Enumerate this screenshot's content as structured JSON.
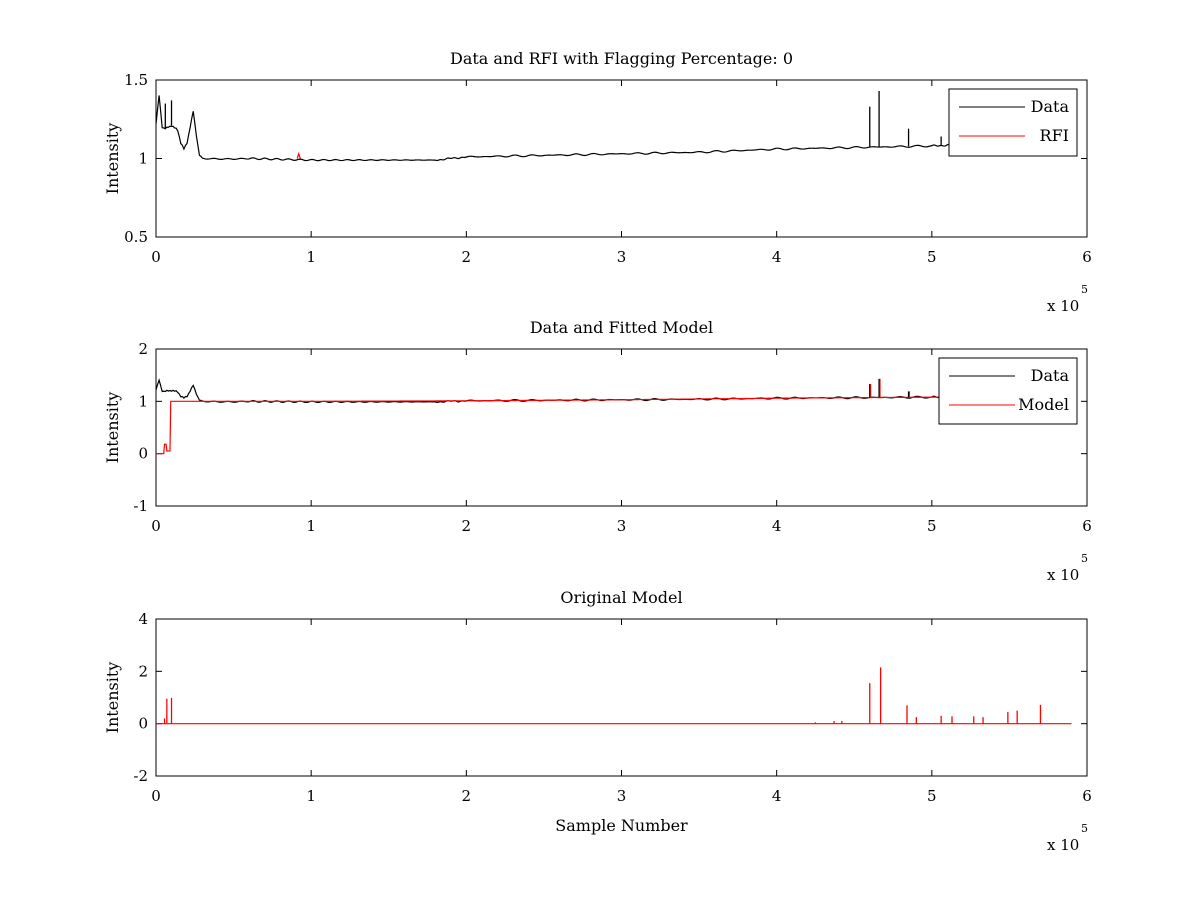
{
  "chart_data": [
    {
      "type": "line",
      "title": "Data and RFI with Flagging Percentage: 0",
      "xlabel": "",
      "ylabel": "Intensity",
      "xlim": [
        0,
        600000
      ],
      "ylim": [
        0.5,
        1.5
      ],
      "xticks": [
        0,
        1,
        2,
        3,
        4,
        5,
        6
      ],
      "yticks": [
        0.5,
        1,
        1.5
      ],
      "xtick_labels": [
        "0",
        "1",
        "2",
        "3",
        "4",
        "5",
        "6"
      ],
      "ytick_labels": [
        "0.5",
        "1",
        "1.5"
      ],
      "x_exponent_label": "x 10",
      "x_exponent_power": "5",
      "grid": false,
      "legend_position": "top-right",
      "series": [
        {
          "name": "Data",
          "color": "#000000",
          "x": [
            0,
            2000,
            4000,
            6000,
            10000,
            14000,
            16000,
            18000,
            20000,
            22000,
            24000,
            26000,
            28000,
            30000,
            60000,
            100000,
            140000,
            180000,
            200000,
            250000,
            300000,
            350000,
            400000,
            450000,
            500000,
            520000
          ],
          "y": [
            1.22,
            1.4,
            1.2,
            1.19,
            1.21,
            1.18,
            1.1,
            1.06,
            1.1,
            1.2,
            1.3,
            1.15,
            1.02,
            1.0,
            1.0,
            0.99,
            0.99,
            0.99,
            1.01,
            1.02,
            1.03,
            1.04,
            1.06,
            1.07,
            1.08,
            1.09
          ]
        },
        {
          "name": "RFI",
          "color": "#ff0000",
          "x": [
            91000,
            92000,
            93000
          ],
          "y": [
            1.0,
            1.03,
            1.0
          ]
        }
      ],
      "spikes": [
        {
          "x": 6000,
          "y": 1.35
        },
        {
          "x": 10000,
          "y": 1.37
        },
        {
          "x": 460000,
          "y": 1.33
        },
        {
          "x": 466000,
          "y": 1.43
        },
        {
          "x": 485000,
          "y": 1.19
        },
        {
          "x": 506000,
          "y": 1.14
        }
      ]
    },
    {
      "type": "line",
      "title": "Data and Fitted Model",
      "xlabel": "",
      "ylabel": "Intensity",
      "xlim": [
        0,
        600000
      ],
      "ylim": [
        -1,
        2
      ],
      "xticks": [
        0,
        1,
        2,
        3,
        4,
        5,
        6
      ],
      "yticks": [
        -1,
        0,
        1,
        2
      ],
      "xtick_labels": [
        "0",
        "1",
        "2",
        "3",
        "4",
        "5",
        "6"
      ],
      "ytick_labels": [
        "-1",
        "0",
        "1",
        "2"
      ],
      "x_exponent_label": "x 10",
      "x_exponent_power": "5",
      "grid": false,
      "legend_position": "top-right",
      "series": [
        {
          "name": "Data",
          "color": "#000000",
          "x": [
            0,
            2000,
            4000,
            6000,
            10000,
            14000,
            16000,
            18000,
            20000,
            22000,
            24000,
            26000,
            28000,
            30000,
            60000,
            100000,
            140000,
            180000,
            200000,
            250000,
            300000,
            350000,
            400000,
            450000,
            500000,
            520000
          ],
          "y": [
            1.22,
            1.4,
            1.2,
            1.19,
            1.21,
            1.18,
            1.1,
            1.06,
            1.1,
            1.2,
            1.3,
            1.15,
            1.02,
            1.0,
            1.0,
            0.99,
            0.99,
            0.99,
            1.01,
            1.02,
            1.03,
            1.04,
            1.06,
            1.07,
            1.08,
            1.09
          ]
        },
        {
          "name": "Model",
          "color": "#ff0000",
          "x": [
            0,
            5000,
            5500,
            6500,
            7000,
            9000,
            9500,
            10500,
            11000,
            100000,
            200000,
            300000,
            400000,
            500000,
            520000
          ],
          "y": [
            0.0,
            0.0,
            0.18,
            0.18,
            0.05,
            0.05,
            1.0,
            1.0,
            1.0,
            1.0,
            1.01,
            1.03,
            1.06,
            1.08,
            1.09
          ]
        }
      ],
      "spikes": [
        {
          "x": 460000,
          "y": 1.33
        },
        {
          "x": 466000,
          "y": 1.43
        },
        {
          "x": 485000,
          "y": 1.19
        }
      ]
    },
    {
      "type": "line",
      "title": "Original Model",
      "xlabel": "Sample Number",
      "ylabel": "Intensity",
      "xlim": [
        0,
        600000
      ],
      "ylim": [
        -2,
        4
      ],
      "xticks": [
        0,
        1,
        2,
        3,
        4,
        5,
        6
      ],
      "yticks": [
        -2,
        0,
        2,
        4
      ],
      "xtick_labels": [
        "0",
        "1",
        "2",
        "3",
        "4",
        "5",
        "6"
      ],
      "ytick_labels": [
        "-2",
        "0",
        "2",
        "4"
      ],
      "x_exponent_label": "x 10",
      "x_exponent_power": "5",
      "grid": false,
      "legend_position": "none",
      "series": [
        {
          "name": "",
          "color": "#ff0000",
          "x": [
            0,
            590000
          ],
          "y": [
            0,
            0
          ]
        }
      ],
      "spikes": [
        {
          "x": 5500,
          "y": 0.2
        },
        {
          "x": 7000,
          "y": 0.95
        },
        {
          "x": 10000,
          "y": 0.98
        },
        {
          "x": 460000,
          "y": 1.55
        },
        {
          "x": 467000,
          "y": 2.15
        },
        {
          "x": 484000,
          "y": 0.7
        },
        {
          "x": 490000,
          "y": 0.25
        },
        {
          "x": 506000,
          "y": 0.3
        },
        {
          "x": 513000,
          "y": 0.28
        },
        {
          "x": 527000,
          "y": 0.28
        },
        {
          "x": 533000,
          "y": 0.25
        },
        {
          "x": 549000,
          "y": 0.45
        },
        {
          "x": 555000,
          "y": 0.5
        },
        {
          "x": 570000,
          "y": 0.72
        },
        {
          "x": 437000,
          "y": 0.1
        },
        {
          "x": 442000,
          "y": 0.1
        },
        {
          "x": 425000,
          "y": 0.05
        }
      ]
    }
  ]
}
